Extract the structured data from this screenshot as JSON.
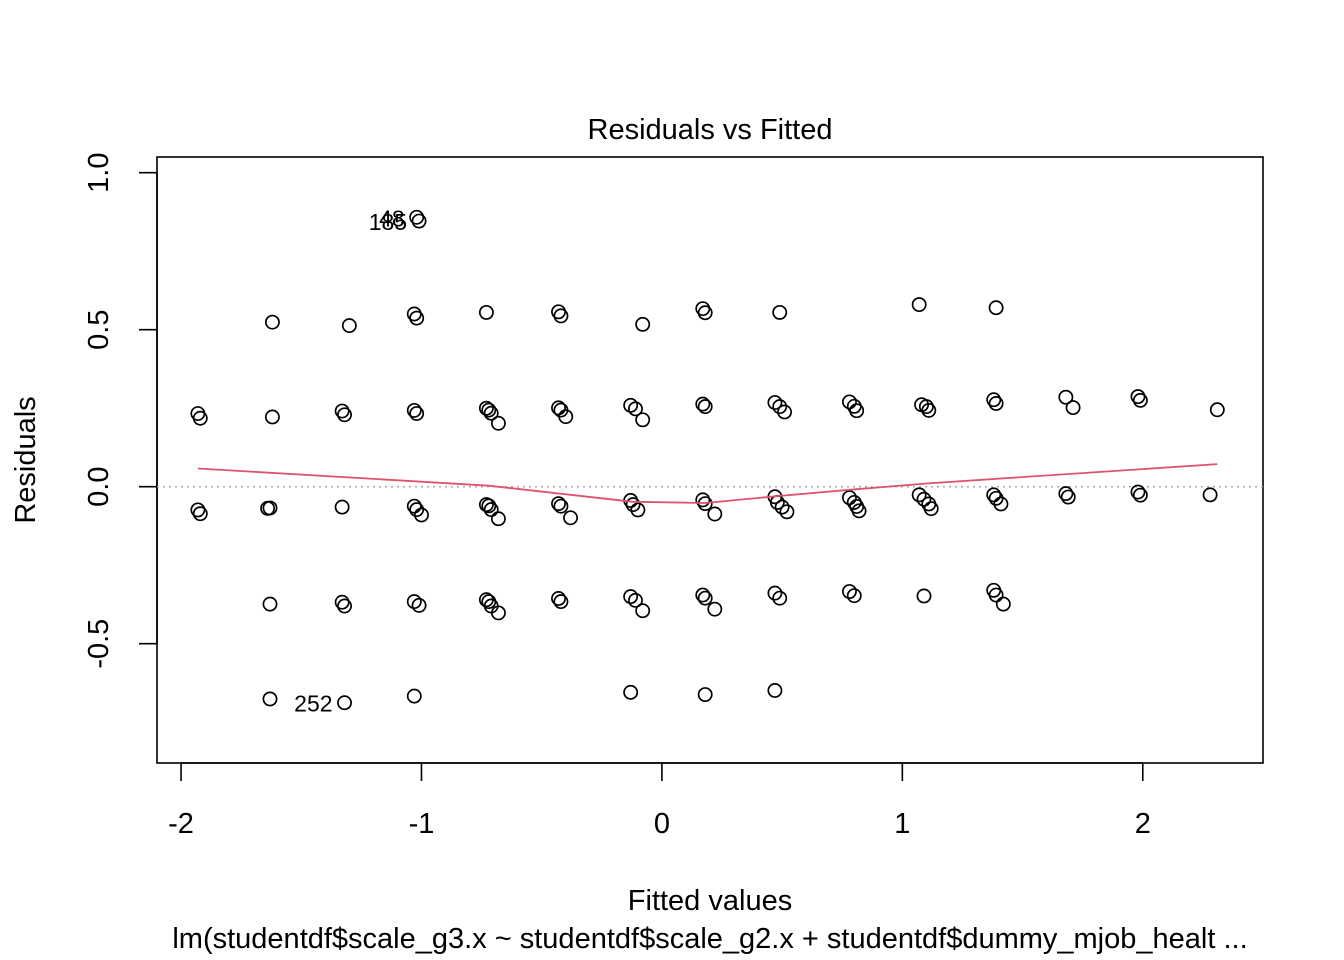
{
  "chart_data": {
    "type": "scatter",
    "title": "Residuals vs Fitted",
    "xlabel": "Fitted values",
    "ylabel": "Residuals",
    "subtitle": "lm(studentdf$scale_g3.x ~ studentdf$scale_g2.x + studentdf$dummy_mjob_healt ...",
    "xlim": [
      -2.1,
      2.5
    ],
    "ylim": [
      -0.88,
      1.05
    ],
    "xticks": [
      -2,
      -1,
      0,
      1,
      2
    ],
    "xtick_labels": [
      "-2",
      "-1",
      "0",
      "1",
      "2"
    ],
    "yticks": [
      -0.5,
      0.0,
      0.5,
      1.0
    ],
    "ytick_labels": [
      "-0.5",
      "0.0",
      "0.5",
      "1.0"
    ],
    "reference_line": {
      "y": 0,
      "style": "dotted",
      "color": "#aaaaaa"
    },
    "smooth_color": "#df536b",
    "point_color": "#000000",
    "grid": false,
    "legend": "none",
    "points": [
      [
        -1.93,
        0.233
      ],
      [
        -1.92,
        0.218
      ],
      [
        -1.93,
        -0.074
      ],
      [
        -1.92,
        -0.086
      ],
      [
        -1.62,
        0.524
      ],
      [
        -1.62,
        0.222
      ],
      [
        -1.63,
        -0.068
      ],
      [
        -1.64,
        -0.069
      ],
      [
        -1.63,
        -0.374
      ],
      [
        -1.63,
        -0.676
      ],
      [
        -1.3,
        0.513
      ],
      [
        -1.33,
        0.241
      ],
      [
        -1.32,
        0.229
      ],
      [
        -1.33,
        -0.065
      ],
      [
        -1.33,
        -0.368
      ],
      [
        -1.32,
        -0.38
      ],
      [
        -1.32,
        -0.688
      ],
      [
        -1.02,
        0.858
      ],
      [
        -1.01,
        0.846
      ],
      [
        -1.03,
        0.55
      ],
      [
        -1.02,
        0.537
      ],
      [
        -1.03,
        0.243
      ],
      [
        -1.02,
        0.233
      ],
      [
        -1.03,
        -0.062
      ],
      [
        -1.02,
        -0.073
      ],
      [
        -1.0,
        -0.09
      ],
      [
        -1.03,
        -0.366
      ],
      [
        -1.01,
        -0.378
      ],
      [
        -1.03,
        -0.667
      ],
      [
        -0.73,
        0.555
      ],
      [
        -0.73,
        0.25
      ],
      [
        -0.72,
        0.244
      ],
      [
        -0.71,
        0.234
      ],
      [
        -0.68,
        0.202
      ],
      [
        -0.73,
        -0.057
      ],
      [
        -0.72,
        -0.061
      ],
      [
        -0.71,
        -0.073
      ],
      [
        -0.68,
        -0.102
      ],
      [
        -0.73,
        -0.36
      ],
      [
        -0.72,
        -0.366
      ],
      [
        -0.71,
        -0.38
      ],
      [
        -0.68,
        -0.402
      ],
      [
        -0.43,
        0.557
      ],
      [
        -0.42,
        0.544
      ],
      [
        -0.43,
        0.251
      ],
      [
        -0.42,
        0.244
      ],
      [
        -0.4,
        0.223
      ],
      [
        -0.43,
        -0.054
      ],
      [
        -0.42,
        -0.062
      ],
      [
        -0.38,
        -0.099
      ],
      [
        -0.43,
        -0.356
      ],
      [
        -0.42,
        -0.366
      ],
      [
        -0.13,
        0.259
      ],
      [
        -0.11,
        0.248
      ],
      [
        -0.08,
        0.213
      ],
      [
        -0.08,
        0.517
      ],
      [
        -0.13,
        -0.044
      ],
      [
        -0.12,
        -0.057
      ],
      [
        -0.1,
        -0.074
      ],
      [
        -0.13,
        -0.35
      ],
      [
        -0.11,
        -0.362
      ],
      [
        -0.08,
        -0.395
      ],
      [
        -0.13,
        -0.655
      ],
      [
        0.17,
        0.567
      ],
      [
        0.18,
        0.554
      ],
      [
        0.17,
        0.263
      ],
      [
        0.18,
        0.255
      ],
      [
        0.17,
        -0.042
      ],
      [
        0.18,
        -0.054
      ],
      [
        0.22,
        -0.087
      ],
      [
        0.17,
        -0.345
      ],
      [
        0.18,
        -0.355
      ],
      [
        0.22,
        -0.39
      ],
      [
        0.18,
        -0.662
      ],
      [
        0.49,
        0.555
      ],
      [
        0.47,
        0.268
      ],
      [
        0.49,
        0.255
      ],
      [
        0.51,
        0.238
      ],
      [
        0.47,
        -0.032
      ],
      [
        0.48,
        -0.05
      ],
      [
        0.5,
        -0.065
      ],
      [
        0.52,
        -0.08
      ],
      [
        0.47,
        -0.339
      ],
      [
        0.49,
        -0.355
      ],
      [
        0.47,
        -0.649
      ],
      [
        0.78,
        0.27
      ],
      [
        0.8,
        0.256
      ],
      [
        0.81,
        0.242
      ],
      [
        0.78,
        -0.035
      ],
      [
        0.8,
        -0.05
      ],
      [
        0.81,
        -0.063
      ],
      [
        0.82,
        -0.077
      ],
      [
        0.78,
        -0.334
      ],
      [
        0.8,
        -0.347
      ],
      [
        1.07,
        0.58
      ],
      [
        1.08,
        0.261
      ],
      [
        1.1,
        0.255
      ],
      [
        1.11,
        0.243
      ],
      [
        1.07,
        -0.026
      ],
      [
        1.09,
        -0.04
      ],
      [
        1.11,
        -0.055
      ],
      [
        1.12,
        -0.07
      ],
      [
        1.09,
        -0.348
      ],
      [
        1.39,
        0.57
      ],
      [
        1.38,
        0.277
      ],
      [
        1.39,
        0.265
      ],
      [
        1.38,
        -0.026
      ],
      [
        1.39,
        -0.037
      ],
      [
        1.41,
        -0.055
      ],
      [
        1.38,
        -0.33
      ],
      [
        1.39,
        -0.345
      ],
      [
        1.42,
        -0.374
      ],
      [
        1.68,
        0.285
      ],
      [
        1.71,
        0.252
      ],
      [
        1.68,
        -0.022
      ],
      [
        1.69,
        -0.033
      ],
      [
        1.98,
        0.287
      ],
      [
        1.99,
        0.275
      ],
      [
        1.98,
        -0.017
      ],
      [
        1.99,
        -0.027
      ],
      [
        2.28,
        -0.026
      ],
      [
        2.31,
        0.245
      ]
    ],
    "smooth_line": [
      [
        -1.93,
        0.058
      ],
      [
        -0.72,
        0.003
      ],
      [
        -0.12,
        -0.048
      ],
      [
        0.18,
        -0.052
      ],
      [
        0.48,
        -0.03
      ],
      [
        0.81,
        -0.008
      ],
      [
        1.1,
        0.01
      ],
      [
        2.31,
        0.072
      ]
    ],
    "point_labels": [
      {
        "text": "48",
        "x": -1.02,
        "y": 0.858
      },
      {
        "text": "185",
        "x": -1.01,
        "y": 0.846
      },
      {
        "text": "252",
        "x": -1.32,
        "y": -0.688
      }
    ]
  }
}
